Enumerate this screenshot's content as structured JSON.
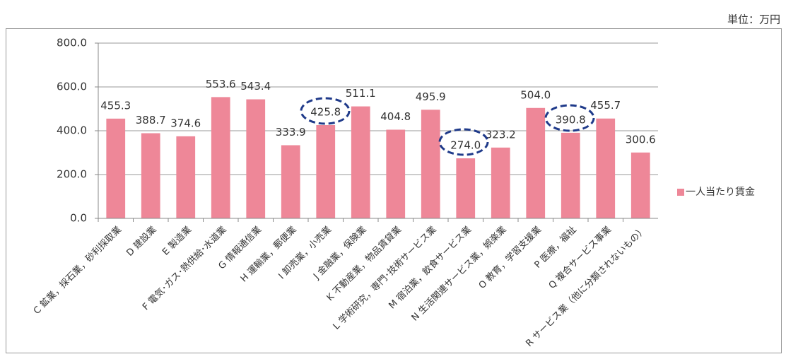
{
  "chart_data": {
    "type": "bar",
    "unit_label": "単位：万円",
    "categories": [
      "C 鉱業，採石業，砂利採取業",
      "D 建設業",
      "E 製造業",
      "F 電気･ガス･熱供給･水道業",
      "G 情報通信業",
      "H 運輸業，郵便業",
      "I 卸売業，小売業",
      "J 金融業，保険業",
      "K 不動産業，物品賃貸業",
      "L 学術研究，専門･技術サービス業",
      "M 宿泊業，飲食サービス業",
      "N 生活関連サービス業，娯楽業",
      "O 教育，学習支援業",
      "P 医療，福祉",
      "Q 複合サービス事業",
      "R サービス業（他に分類されないもの）"
    ],
    "series": [
      {
        "name": "一人当たり賃金",
        "color": "#ee8798",
        "values": [
          455.3,
          388.7,
          374.6,
          553.6,
          543.4,
          333.9,
          425.8,
          511.1,
          404.8,
          495.9,
          274.0,
          323.2,
          504.0,
          390.8,
          455.7,
          300.6
        ],
        "value_labels": [
          "455.3",
          "388.7",
          "374.6",
          "553.6",
          "543.4",
          "333.9",
          "425.8",
          "511.1",
          "404.8",
          "495.9",
          "274.0",
          "323.2",
          "504.0",
          "390.8",
          "455.7",
          "300.6"
        ]
      }
    ],
    "ylim": [
      0,
      800
    ],
    "yticks": [
      {
        "value": 0,
        "label": "0.0"
      },
      {
        "value": 200,
        "label": "200.0"
      },
      {
        "value": 400,
        "label": "400.0"
      },
      {
        "value": 600,
        "label": "600.0"
      },
      {
        "value": 800,
        "label": "800.0"
      }
    ],
    "grid": true,
    "legend": "right"
  }
}
